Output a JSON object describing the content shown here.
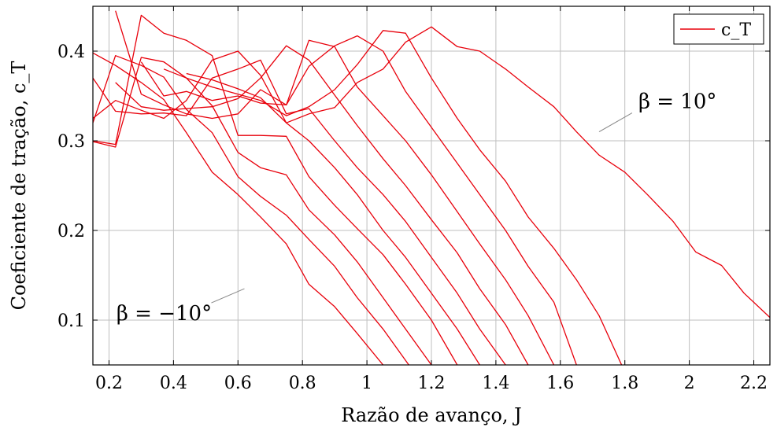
{
  "chart_data": {
    "type": "line",
    "title": "",
    "xlabel": "Razão de avanço, J",
    "ylabel": "Coeficiente de tração, c_T",
    "xlim": [
      0.15,
      2.25
    ],
    "ylim": [
      0.05,
      0.45
    ],
    "x_ticks": [
      0.2,
      0.4,
      0.6,
      0.8,
      1,
      1.2,
      1.4,
      1.6,
      1.8,
      2,
      2.2
    ],
    "x_tick_labels": [
      "0.2",
      "0.4",
      "0.6",
      "0.8",
      "1",
      "1.2",
      "1.4",
      "1.6",
      "1.8",
      "2",
      "2.2"
    ],
    "y_ticks": [
      0.1,
      0.2,
      0.3,
      0.4
    ],
    "y_tick_labels": [
      "0.1",
      "0.2",
      "0.3",
      "0.4"
    ],
    "grid": true,
    "legend": {
      "position": "top-right",
      "entries": [
        "c_T"
      ]
    },
    "line_color": "#e8000b",
    "annotations": [
      {
        "text": "β = 10°",
        "points_to": [
          1.72,
          0.31
        ]
      },
      {
        "text": "β = −10°",
        "points_to": [
          0.62,
          0.135
        ]
      }
    ],
    "series": [
      {
        "values": [
          [
            0.15,
            0.398
          ],
          [
            0.22,
            0.384
          ],
          [
            0.3,
            0.365
          ],
          [
            0.37,
            0.346
          ],
          [
            0.44,
            0.309
          ],
          [
            0.52,
            0.265
          ],
          [
            0.6,
            0.24
          ],
          [
            0.67,
            0.215
          ],
          [
            0.75,
            0.185
          ],
          [
            0.82,
            0.14
          ],
          [
            0.9,
            0.115
          ],
          [
            0.97,
            0.085
          ],
          [
            1.05,
            0.05
          ]
        ]
      },
      {
        "values": [
          [
            0.15,
            0.32
          ],
          [
            0.22,
            0.395
          ],
          [
            0.3,
            0.384
          ],
          [
            0.37,
            0.371
          ],
          [
            0.44,
            0.335
          ],
          [
            0.52,
            0.309
          ],
          [
            0.6,
            0.26
          ],
          [
            0.67,
            0.238
          ],
          [
            0.75,
            0.217
          ],
          [
            0.82,
            0.19
          ],
          [
            0.9,
            0.16
          ],
          [
            0.97,
            0.125
          ],
          [
            1.05,
            0.09
          ],
          [
            1.13,
            0.05
          ]
        ]
      },
      {
        "values": [
          [
            0.15,
            0.299
          ],
          [
            0.22,
            0.293
          ],
          [
            0.3,
            0.393
          ],
          [
            0.37,
            0.388
          ],
          [
            0.44,
            0.37
          ],
          [
            0.52,
            0.339
          ],
          [
            0.6,
            0.287
          ],
          [
            0.67,
            0.27
          ],
          [
            0.75,
            0.262
          ],
          [
            0.82,
            0.223
          ],
          [
            0.9,
            0.195
          ],
          [
            0.97,
            0.165
          ],
          [
            1.05,
            0.125
          ],
          [
            1.12,
            0.09
          ],
          [
            1.2,
            0.05
          ]
        ]
      },
      {
        "values": [
          [
            0.15,
            0.3
          ],
          [
            0.22,
            0.296
          ],
          [
            0.3,
            0.44
          ],
          [
            0.37,
            0.42
          ],
          [
            0.44,
            0.412
          ],
          [
            0.52,
            0.395
          ],
          [
            0.6,
            0.306
          ],
          [
            0.67,
            0.306
          ],
          [
            0.75,
            0.305
          ],
          [
            0.82,
            0.26
          ],
          [
            0.9,
            0.228
          ],
          [
            0.97,
            0.202
          ],
          [
            1.05,
            0.173
          ],
          [
            1.12,
            0.14
          ],
          [
            1.2,
            0.1
          ],
          [
            1.28,
            0.05
          ]
        ]
      },
      {
        "values": [
          [
            0.15,
            0.325
          ],
          [
            0.22,
            0.345
          ],
          [
            0.3,
            0.334
          ],
          [
            0.37,
            0.325
          ],
          [
            0.44,
            0.345
          ],
          [
            0.52,
            0.39
          ],
          [
            0.6,
            0.4
          ],
          [
            0.67,
            0.373
          ],
          [
            0.75,
            0.32
          ],
          [
            0.82,
            0.3
          ],
          [
            0.9,
            0.27
          ],
          [
            0.97,
            0.24
          ],
          [
            1.05,
            0.2
          ],
          [
            1.12,
            0.17
          ],
          [
            1.2,
            0.13
          ],
          [
            1.28,
            0.09
          ],
          [
            1.35,
            0.05
          ]
        ]
      },
      {
        "values": [
          [
            0.15,
            0.37
          ],
          [
            0.22,
            0.333
          ],
          [
            0.3,
            0.33
          ],
          [
            0.37,
            0.331
          ],
          [
            0.44,
            0.328
          ],
          [
            0.52,
            0.37
          ],
          [
            0.6,
            0.38
          ],
          [
            0.67,
            0.39
          ],
          [
            0.75,
            0.33
          ],
          [
            0.82,
            0.336
          ],
          [
            0.9,
            0.3
          ],
          [
            0.97,
            0.27
          ],
          [
            1.05,
            0.24
          ],
          [
            1.12,
            0.21
          ],
          [
            1.2,
            0.17
          ],
          [
            1.28,
            0.13
          ],
          [
            1.35,
            0.09
          ],
          [
            1.43,
            0.05
          ]
        ]
      },
      {
        "values": [
          [
            0.22,
            0.365
          ],
          [
            0.3,
            0.338
          ],
          [
            0.37,
            0.334
          ],
          [
            0.44,
            0.336
          ],
          [
            0.52,
            0.338
          ],
          [
            0.6,
            0.347
          ],
          [
            0.67,
            0.37
          ],
          [
            0.75,
            0.406
          ],
          [
            0.82,
            0.39
          ],
          [
            0.9,
            0.351
          ],
          [
            0.97,
            0.317
          ],
          [
            1.05,
            0.28
          ],
          [
            1.12,
            0.25
          ],
          [
            1.2,
            0.212
          ],
          [
            1.28,
            0.175
          ],
          [
            1.35,
            0.135
          ],
          [
            1.43,
            0.095
          ],
          [
            1.5,
            0.05
          ]
        ]
      },
      {
        "values": [
          [
            0.22,
            0.445
          ],
          [
            0.3,
            0.352
          ],
          [
            0.37,
            0.34
          ],
          [
            0.44,
            0.33
          ],
          [
            0.52,
            0.325
          ],
          [
            0.6,
            0.33
          ],
          [
            0.67,
            0.357
          ],
          [
            0.75,
            0.34
          ],
          [
            0.82,
            0.412
          ],
          [
            0.9,
            0.405
          ],
          [
            0.97,
            0.36
          ],
          [
            1.05,
            0.328
          ],
          [
            1.12,
            0.3
          ],
          [
            1.2,
            0.262
          ],
          [
            1.28,
            0.221
          ],
          [
            1.35,
            0.185
          ],
          [
            1.43,
            0.145
          ],
          [
            1.5,
            0.105
          ],
          [
            1.58,
            0.05
          ]
        ]
      },
      {
        "values": [
          [
            0.3,
            0.388
          ],
          [
            0.37,
            0.35
          ],
          [
            0.44,
            0.355
          ],
          [
            0.52,
            0.345
          ],
          [
            0.6,
            0.35
          ],
          [
            0.67,
            0.342
          ],
          [
            0.75,
            0.34
          ],
          [
            0.82,
            0.383
          ],
          [
            0.9,
            0.406
          ],
          [
            0.97,
            0.417
          ],
          [
            1.05,
            0.4
          ],
          [
            1.12,
            0.355
          ],
          [
            1.2,
            0.315
          ],
          [
            1.28,
            0.275
          ],
          [
            1.35,
            0.24
          ],
          [
            1.43,
            0.2
          ],
          [
            1.5,
            0.16
          ],
          [
            1.58,
            0.12
          ],
          [
            1.65,
            0.05
          ]
        ]
      },
      {
        "values": [
          [
            0.37,
            0.38
          ],
          [
            0.44,
            0.37
          ],
          [
            0.52,
            0.36
          ],
          [
            0.6,
            0.352
          ],
          [
            0.67,
            0.345
          ],
          [
            0.75,
            0.328
          ],
          [
            0.82,
            0.338
          ],
          [
            0.9,
            0.357
          ],
          [
            0.97,
            0.385
          ],
          [
            1.05,
            0.423
          ],
          [
            1.12,
            0.42
          ],
          [
            1.2,
            0.37
          ],
          [
            1.28,
            0.325
          ],
          [
            1.35,
            0.29
          ],
          [
            1.43,
            0.255
          ],
          [
            1.5,
            0.215
          ],
          [
            1.58,
            0.18
          ],
          [
            1.65,
            0.145
          ],
          [
            1.72,
            0.105
          ],
          [
            1.79,
            0.05
          ]
        ]
      },
      {
        "values": [
          [
            0.44,
            0.375
          ],
          [
            0.52,
            0.368
          ],
          [
            0.6,
            0.358
          ],
          [
            0.67,
            0.348
          ],
          [
            0.75,
            0.32
          ],
          [
            0.82,
            0.33
          ],
          [
            0.9,
            0.337
          ],
          [
            0.97,
            0.365
          ],
          [
            1.05,
            0.38
          ],
          [
            1.12,
            0.41
          ],
          [
            1.2,
            0.427
          ],
          [
            1.28,
            0.405
          ],
          [
            1.35,
            0.4
          ],
          [
            1.43,
            0.38
          ],
          [
            1.5,
            0.36
          ],
          [
            1.58,
            0.338
          ],
          [
            1.65,
            0.31
          ],
          [
            1.72,
            0.284
          ],
          [
            1.8,
            0.265
          ],
          [
            1.87,
            0.24
          ],
          [
            1.95,
            0.21
          ],
          [
            2.02,
            0.176
          ],
          [
            2.1,
            0.161
          ],
          [
            2.17,
            0.13
          ],
          [
            2.25,
            0.103
          ]
        ]
      }
    ]
  }
}
